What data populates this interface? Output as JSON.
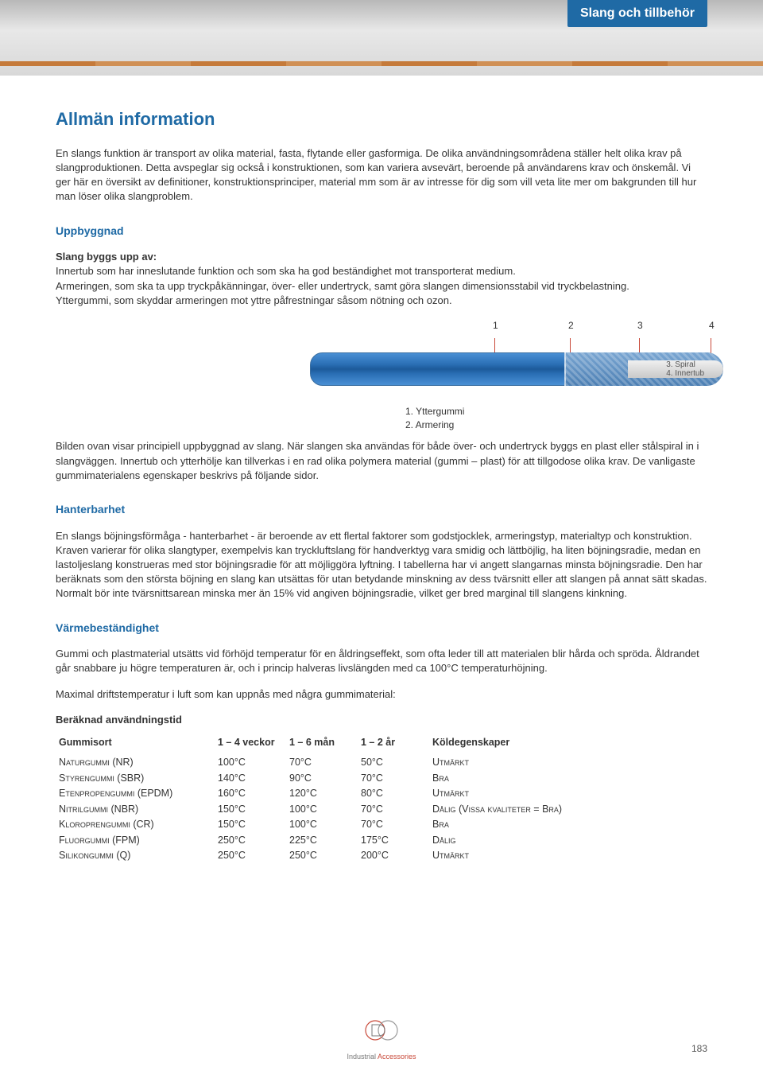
{
  "header": {
    "tab_label": "Slang och tillbehör"
  },
  "title": "Allmän information",
  "intro_para": "En slangs funktion är transport av olika material, fasta, flytande eller gasformiga. De olika användningsområdena ställer helt olika krav på slangproduktionen. Detta avspeglar sig också i konstruktionen, som kan variera avsevärt, beroende på användarens krav och önskemål. Vi ger här en översikt av definitioner, konstruktionsprinciper, material mm som är av intresse för dig som vill veta lite mer om bakgrunden till hur man löser olika slangproblem.",
  "sections": {
    "uppbyggnad": {
      "heading": "Uppbyggnad",
      "lead": "Slang byggs upp av:",
      "line1": "Innertub som har inneslutande funktion och som ska ha god beständighet mot transporterat medium.",
      "line2": "Armeringen, som ska ta upp tryckpåkänningar, över- eller undertryck, samt göra slangen dimensionsstabil vid tryckbelastning.",
      "line3": "Yttergummi, som skyddar armeringen mot yttre påfrestningar såsom nötning och ozon.",
      "diagram": {
        "callouts": [
          "1",
          "2",
          "3",
          "4"
        ],
        "inner_labels": [
          "3. Spiral",
          "4. Innertub"
        ],
        "legend": [
          "1. Yttergummi",
          "2. Armering"
        ],
        "hose_color": "#2a6fb5",
        "pointer_color": "#c94a3a"
      },
      "para_below": "Bilden ovan visar principiell uppbyggnad av slang. När slangen ska användas för både över- och undertryck byggs en plast eller stålspiral in i slangväggen. Innertub och ytterhölje kan tillverkas i en rad olika polymera material (gummi – plast) för att tillgodose olika krav. De vanligaste gummimaterialens egenskaper beskrivs på följande sidor."
    },
    "hanterbarhet": {
      "heading": "Hanterbarhet",
      "para": "En slangs böjningsförmåga - hanterbarhet - är beroende av ett flertal faktorer som godstjocklek, armeringstyp, materialtyp och konstruktion. Kraven varierar för olika slangtyper, exempelvis kan tryckluftslang för handverktyg vara smidig och lättböjlig, ha liten böjningsradie, medan en lastoljeslang konstrueras med stor böjningsradie för att möjliggöra lyftning. I tabellerna har vi angett slangarnas minsta böjningsradie. Den har beräknats som den största böjning en slang kan utsättas för utan betydande minskning av dess tvärsnitt eller att slangen på annat sätt skadas. Normalt bör inte tvärsnittsarean minska mer än 15% vid angiven böjningsradie, vilket ger bred marginal till slangens kinkning."
    },
    "varme": {
      "heading": "Värmebeständighet",
      "para1": "Gummi och plastmaterial utsätts vid förhöjd temperatur för en åldringseffekt, som ofta leder till att materialen blir hårda och spröda. Åldrandet går snabbare ju högre temperaturen är, och i princip halveras livslängden med ca 100°C temperaturhöjning.",
      "para2": "Maximal driftstemperatur i luft som kan uppnås med några gummimaterial:",
      "table_title": "Beräknad användningstid",
      "table": {
        "columns": [
          "Gummisort",
          "1 – 4 veckor",
          "1 – 6 mån",
          "1 – 2 år",
          "Köldegenskaper"
        ],
        "rows": [
          [
            "Naturgummi (NR)",
            "100°C",
            "70°C",
            "50°C",
            "Utmärkt"
          ],
          [
            "Styrengummi (SBR)",
            "140°C",
            "90°C",
            "70°C",
            "Bra"
          ],
          [
            "Etenpropengummi (EPDM)",
            "160°C",
            "120°C",
            "80°C",
            "Utmärkt"
          ],
          [
            "Nitrilgummi (NBR)",
            "150°C",
            "100°C",
            "70°C",
            "Dålig (Vissa kvaliteter = Bra)"
          ],
          [
            "Kloroprengummi (CR)",
            "150°C",
            "100°C",
            "70°C",
            "Bra"
          ],
          [
            "Fluorgummi (FPM)",
            "250°C",
            "225°C",
            "175°C",
            "Dålig"
          ],
          [
            "Silikongummi (Q)",
            "250°C",
            "250°C",
            "200°C",
            "Utmärkt"
          ]
        ]
      }
    }
  },
  "footer": {
    "brand1": "Industrial",
    "brand2": "Accessories"
  },
  "page_number": "183"
}
